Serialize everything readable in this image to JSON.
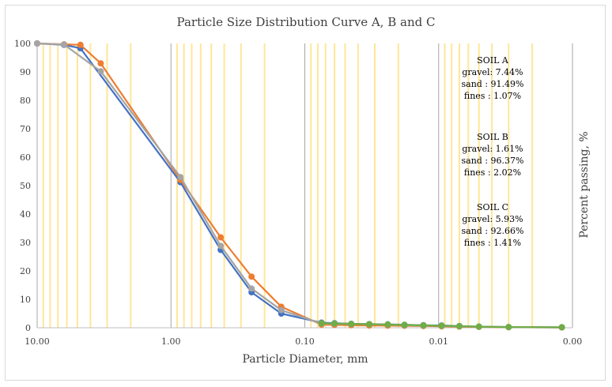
{
  "chart_data": {
    "type": "line",
    "title": "Particle Size Distribution Curve A, B and C",
    "xlabel": "Particle Diameter, mm",
    "ylabel": "Percent passing, %",
    "x_scale": "log",
    "x_reversed": true,
    "xlim": [
      0.001,
      10
    ],
    "ylim": [
      0,
      100
    ],
    "x_tick_values": [
      10,
      1,
      0.1,
      0.01,
      0.001
    ],
    "x_tick_labels": [
      "10.00",
      "1.00",
      "0.10",
      "0.01",
      "0.00"
    ],
    "y_ticks": [
      0,
      10,
      20,
      30,
      40,
      50,
      60,
      70,
      80,
      90,
      100
    ],
    "grid": "major and minor vertical gridlines",
    "legend": "none",
    "series": [
      {
        "color": "#4472c4",
        "points": [
          [
            10,
            100
          ],
          [
            6.3,
            99.5
          ],
          [
            4.75,
            98.3
          ],
          [
            0.85,
            51.2
          ],
          [
            0.425,
            27.4
          ],
          [
            0.25,
            12.5
          ],
          [
            0.15,
            5.0
          ],
          [
            0.075,
            1.8
          ],
          [
            0.06,
            1.6
          ],
          [
            0.045,
            1.4
          ],
          [
            0.033,
            1.3
          ],
          [
            0.024,
            1.2
          ],
          [
            0.018,
            1.05
          ],
          [
            0.013,
            0.9
          ],
          [
            0.0095,
            0.8
          ],
          [
            0.007,
            0.6
          ],
          [
            0.005,
            0.4
          ],
          [
            0.003,
            0.25
          ],
          [
            0.0012,
            0.15
          ]
        ]
      },
      {
        "color": "#ed7d31",
        "points": [
          [
            10,
            100
          ],
          [
            6.3,
            99.7
          ],
          [
            4.75,
            99.5
          ],
          [
            3.35,
            93.0
          ],
          [
            0.85,
            52.0
          ],
          [
            0.425,
            31.8
          ],
          [
            0.25,
            18.0
          ],
          [
            0.15,
            7.4
          ],
          [
            0.075,
            1.1
          ],
          [
            0.06,
            1.0
          ],
          [
            0.045,
            0.9
          ],
          [
            0.033,
            0.8
          ],
          [
            0.024,
            0.75
          ],
          [
            0.018,
            0.7
          ],
          [
            0.013,
            0.6
          ],
          [
            0.0095,
            0.5
          ],
          [
            0.007,
            0.4
          ],
          [
            0.005,
            0.3
          ],
          [
            0.003,
            0.2
          ],
          [
            0.0012,
            0.1
          ]
        ]
      },
      {
        "color": "#a5a5a5",
        "points": [
          [
            10,
            100
          ],
          [
            6.3,
            99.6
          ],
          [
            3.35,
            90.2
          ],
          [
            0.85,
            53.0
          ],
          [
            0.425,
            28.8
          ],
          [
            0.25,
            13.8
          ],
          [
            0.15,
            6.2
          ],
          [
            0.075,
            1.5
          ],
          [
            0.06,
            1.4
          ],
          [
            0.045,
            1.3
          ],
          [
            0.033,
            1.2
          ],
          [
            0.024,
            1.1
          ],
          [
            0.018,
            0.9
          ],
          [
            0.013,
            0.75
          ],
          [
            0.0095,
            0.65
          ],
          [
            0.007,
            0.5
          ],
          [
            0.005,
            0.35
          ],
          [
            0.003,
            0.2
          ],
          [
            0.0012,
            0.12
          ]
        ]
      },
      {
        "color": "#70ad47",
        "points": [
          [
            0.075,
            1.6
          ],
          [
            0.06,
            1.5
          ],
          [
            0.045,
            1.35
          ],
          [
            0.033,
            1.25
          ],
          [
            0.024,
            1.15
          ],
          [
            0.018,
            1.0
          ],
          [
            0.013,
            0.85
          ],
          [
            0.0095,
            0.7
          ],
          [
            0.007,
            0.55
          ],
          [
            0.005,
            0.4
          ],
          [
            0.003,
            0.25
          ],
          [
            0.0012,
            0.2
          ]
        ]
      }
    ],
    "annotations": [
      {
        "lines": [
          "SOIL A",
          "gravel: 7.44%",
          "sand : 91.49%",
          "fines : 1.07%"
        ]
      },
      {
        "lines": [
          "SOIL B",
          "gravel: 1.61%",
          "sand : 96.37%",
          "fines : 2.02%"
        ]
      },
      {
        "lines": [
          "SOIL C",
          "gravel: 5.93%",
          "sand : 92.66%",
          "fines : 1.41%"
        ]
      }
    ],
    "colors": {
      "minor_grid": "#ffe699",
      "major_grid": "#a6a6a6",
      "axis_line": "#bfbfbf"
    }
  }
}
